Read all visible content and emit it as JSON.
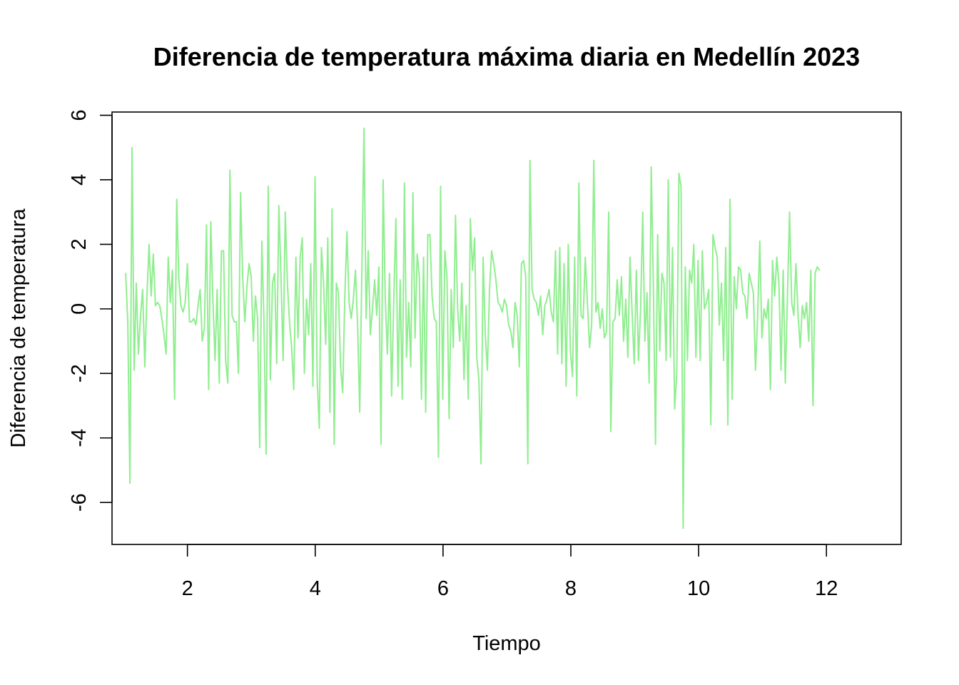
{
  "chart_data": {
    "type": "line",
    "title": "Diferencia de temperatura máxima diaria en Medellín 2023",
    "xlabel": "Tiempo",
    "ylabel": "Diferencia de temperatura",
    "xlim": [
      0.82,
      13.17
    ],
    "ylim": [
      -7.3,
      6.1
    ],
    "x_ticks": [
      2,
      4,
      6,
      8,
      10,
      12
    ],
    "x_tick_labels": [
      "2",
      "4",
      "6",
      "8",
      "10",
      "12"
    ],
    "y_ticks": [
      -6,
      -4,
      -2,
      0,
      2,
      4,
      6
    ],
    "y_tick_labels": [
      "-6",
      "-4",
      "-2",
      "0",
      "2",
      "4",
      "6"
    ],
    "grid": false,
    "legend": "none",
    "series_color": "#90EE90",
    "x_start": 1.0333,
    "x_step": 0.0333,
    "series": [
      {
        "values": [
          1.1,
          -0.4,
          -5.4,
          5.0,
          -1.9,
          0.8,
          -1.4,
          -0.2,
          0.6,
          -1.8,
          0.4,
          2.0,
          0.4,
          1.7,
          0.1,
          0.2,
          0.1,
          -0.3,
          -0.8,
          -1.4,
          1.6,
          0.2,
          1.2,
          -2.8,
          3.4,
          0.9,
          0.1,
          -0.1,
          0.2,
          1.4,
          -0.4,
          -0.4,
          -0.3,
          -0.5,
          0.1,
          0.6,
          -1.0,
          -0.6,
          2.6,
          -2.5,
          2.7,
          0.3,
          -1.6,
          0.6,
          -2.3,
          1.8,
          1.8,
          -1.6,
          -2.3,
          4.3,
          -0.2,
          -0.4,
          -0.4,
          -2.0,
          3.6,
          1.0,
          -0.4,
          0.7,
          1.4,
          1.0,
          -1.0,
          0.4,
          -0.3,
          -4.3,
          2.1,
          -0.4,
          -4.5,
          3.8,
          -2.2,
          0.8,
          1.1,
          -1.7,
          3.2,
          1.0,
          -1.6,
          3.0,
          0.8,
          -0.4,
          -1.2,
          -2.5,
          1.6,
          -0.9,
          1.6,
          2.2,
          -2.0,
          0.3,
          -0.8,
          1.4,
          -2.4,
          4.1,
          -2.2,
          -3.7,
          1.9,
          0.8,
          -1.1,
          2.2,
          -3.2,
          3.1,
          -4.2,
          0.8,
          0.5,
          -1.8,
          -2.6,
          0.4,
          2.4,
          0.2,
          -0.3,
          0.3,
          1.2,
          -0.5,
          -3.2,
          1.2,
          5.6,
          -0.3,
          1.8,
          -0.8,
          0.0,
          0.9,
          -0.2,
          1.3,
          -4.2,
          4.0,
          0.3,
          -1.4,
          1.1,
          -2.7,
          0.3,
          2.8,
          -2.4,
          0.9,
          -2.8,
          3.9,
          -1.5,
          0.2,
          -1.8,
          3.6,
          -0.9,
          1.7,
          1.0,
          -2.8,
          1.6,
          -3.2,
          2.3,
          2.3,
          0.4,
          -0.3,
          -0.4,
          -4.6,
          3.8,
          -2.8,
          1.8,
          1.0,
          -3.4,
          0.6,
          -1.2,
          2.9,
          0.0,
          -1.0,
          0.8,
          -2.2,
          0.1,
          -2.8,
          2.8,
          1.2,
          2.2,
          -1.5,
          -2.2,
          -4.8,
          1.6,
          -0.8,
          -1.9,
          0.6,
          1.8,
          1.4,
          0.9,
          0.2,
          0.1,
          -0.1,
          0.3,
          0.1,
          -0.5,
          -0.7,
          -1.2,
          0.2,
          -0.2,
          -1.8,
          1.4,
          1.5,
          1.0,
          -4.8,
          4.6,
          0.6,
          0.3,
          0.2,
          -0.2,
          0.4,
          -0.8,
          0.1,
          0.3,
          0.6,
          -0.1,
          -0.4,
          1.8,
          -1.4,
          1.9,
          -1.7,
          1.4,
          -2.4,
          2.0,
          -1.3,
          -2.1,
          1.6,
          -2.7,
          3.9,
          -0.2,
          -0.3,
          1.6,
          0.2,
          -1.2,
          -0.5,
          4.6,
          -0.1,
          0.2,
          -0.6,
          0.0,
          -0.9,
          -0.7,
          3.0,
          -3.8,
          -0.4,
          -0.3,
          0.9,
          -0.2,
          1.0,
          -1.0,
          0.3,
          -1.5,
          1.6,
          -0.1,
          -1.7,
          1.2,
          -1.6,
          0.0,
          3.0,
          -1.0,
          0.5,
          -2.3,
          4.4,
          0.7,
          -4.2,
          2.3,
          -1.3,
          1.1,
          0.8,
          -1.6,
          4.0,
          -1.5,
          1.9,
          -3.1,
          -2.0,
          4.2,
          3.8,
          -6.8,
          1.3,
          -1.6,
          1.2,
          0.8,
          2.0,
          -1.5,
          1.5,
          -1.6,
          1.8,
          0.0,
          0.2,
          0.6,
          -3.6,
          2.3,
          1.9,
          1.6,
          -0.5,
          0.8,
          -1.6,
          1.9,
          -3.6,
          3.4,
          -2.8,
          1.0,
          0.0,
          1.3,
          1.2,
          0.5,
          0.4,
          -0.3,
          1.1,
          0.8,
          0.5,
          -1.9,
          -0.2,
          2.1,
          -0.9,
          0.0,
          -0.3,
          0.3,
          -2.5,
          1.5,
          0.4,
          1.6,
          0.8,
          -1.9,
          1.2,
          -2.3,
          0.4,
          3.0,
          0.2,
          -0.2,
          1.4,
          -0.2,
          -1.2,
          0.1,
          -0.3,
          0.2,
          -1.0,
          1.2,
          -3.0,
          1.1,
          1.3,
          1.2
        ]
      }
    ]
  }
}
